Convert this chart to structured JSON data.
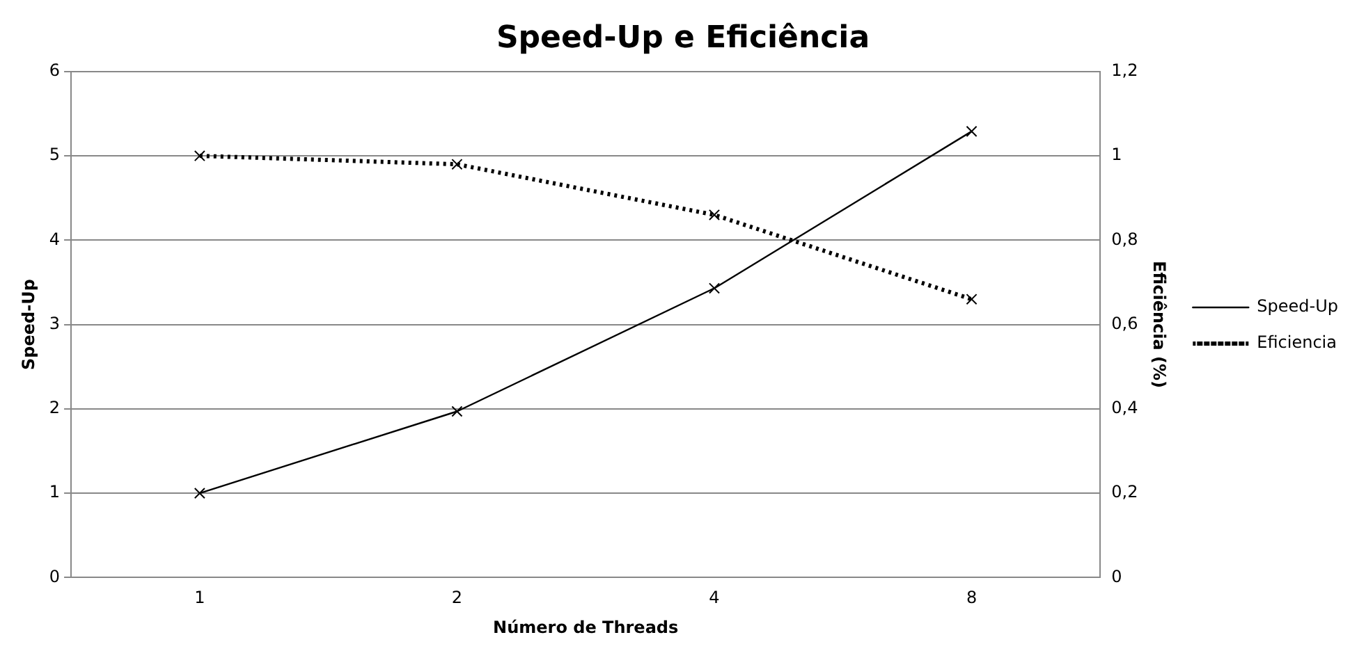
{
  "chart_data": {
    "type": "line",
    "title": "Speed-Up e Eficiência",
    "xlabel": "Número de Threads",
    "ylabel": "Speed-Up",
    "y2label": "Eficiência (%)",
    "categories": [
      "1",
      "2",
      "4",
      "8"
    ],
    "series": [
      {
        "name": "Speed-Up",
        "color": "#000000",
        "values": [
          1,
          1.97,
          3.43,
          5.29
        ],
        "line_style": "solid"
      },
      {
        "name": "Eficiencia",
        "color": "#000000",
        "values": [
          1,
          0.98,
          0.86,
          0.66
        ],
        "axis": "y2",
        "line_style": "dotted"
      }
    ],
    "ylim": [
      0,
      6
    ],
    "yticks": [
      0,
      1,
      2,
      3,
      4,
      5,
      6
    ],
    "y2lim": [
      0,
      1.2
    ],
    "y2ticks": [
      0,
      {
        "value": 0.2,
        "label": "0,2"
      },
      {
        "value": 0.4,
        "label": "0,4"
      },
      {
        "value": 0.6,
        "label": "0,6"
      },
      {
        "value": 0.8,
        "label": "0,8"
      },
      1,
      {
        "value": 1.2,
        "label": "1,2"
      }
    ],
    "grid": "y",
    "legend": "right",
    "marker": "cross"
  }
}
